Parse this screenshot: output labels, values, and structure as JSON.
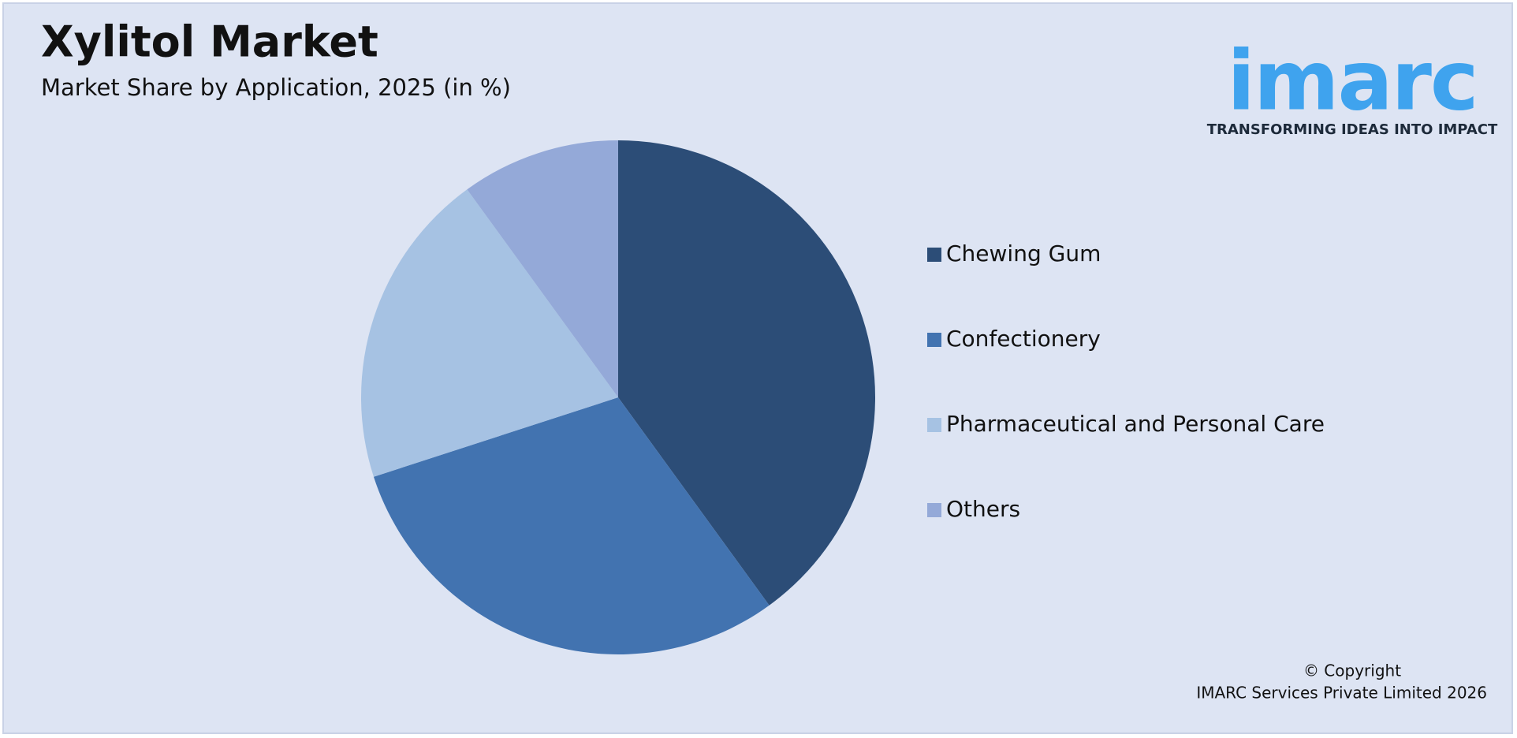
{
  "chart_data": {
    "type": "pie",
    "title": "Xylitol Market",
    "subtitle": "Market Share by Application, 2025 (in %)",
    "categories": [
      "Chewing Gum",
      "Confectionery",
      "Pharmaceutical and Personal Care",
      "Others"
    ],
    "values": [
      40,
      30,
      20,
      10
    ],
    "colors": [
      "#2c4d77",
      "#4273b0",
      "#a6c2e3",
      "#94a9d8"
    ],
    "legend": "right"
  },
  "logo": {
    "name": "imarc",
    "tagline": "TRANSFORMING IDEAS INTO IMPACT"
  },
  "footer": {
    "copyright": "© Copyright",
    "company": "IMARC Services Private Limited 2026"
  }
}
